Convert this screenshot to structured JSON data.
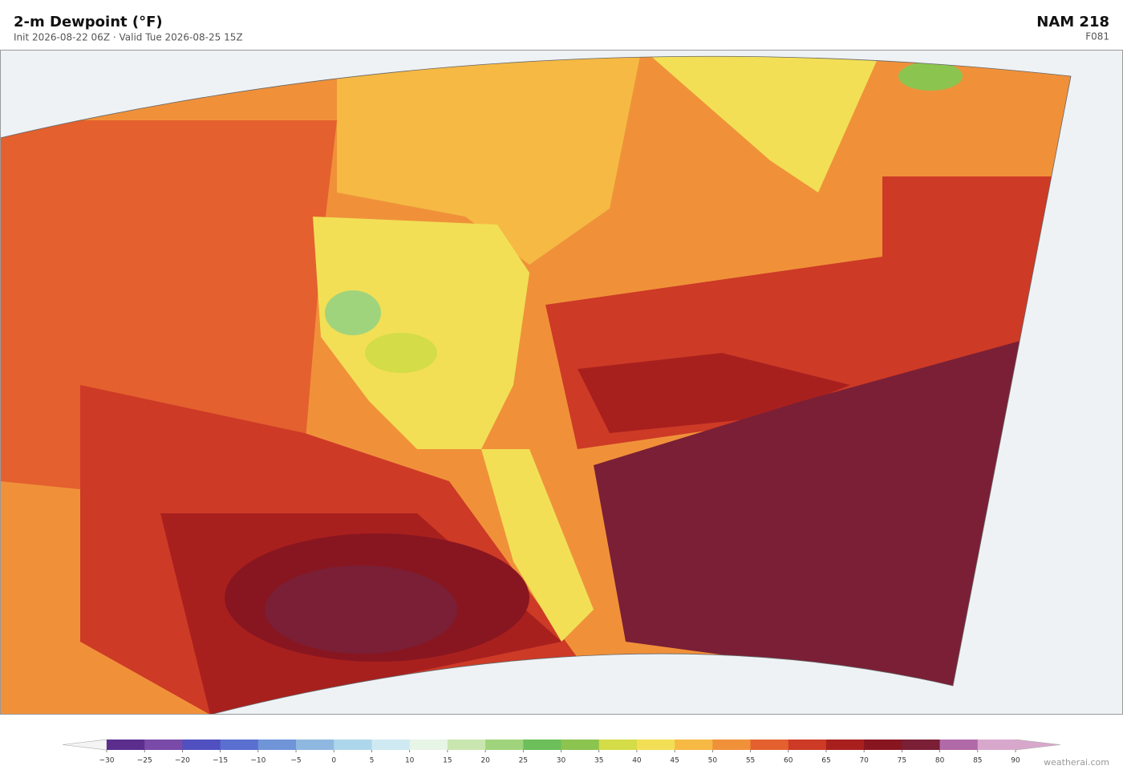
{
  "header": {
    "title": "2-m Dewpoint  (°F)",
    "subtitle": "Init 2026-08-22 06Z  ·  Valid Tue 2026-08-25 15Z",
    "model": "NAM  218",
    "forecast_hour": "F081"
  },
  "colorbar": {
    "ticks": [
      {
        "value": -30,
        "label": "−30"
      },
      {
        "value": -25,
        "label": "−25"
      },
      {
        "value": -20,
        "label": "−20"
      },
      {
        "value": -15,
        "label": "−15"
      },
      {
        "value": -10,
        "label": "−10"
      },
      {
        "value": -5,
        "label": "−5"
      },
      0,
      5,
      10,
      15,
      20,
      25,
      30,
      35,
      40,
      45,
      50,
      55,
      60,
      65,
      70,
      75,
      80,
      85,
      90
    ],
    "colors": [
      "#5b2e8e",
      "#7a4aa8",
      "#5050c0",
      "#5a6fd0",
      "#6f95d8",
      "#8fb8e0",
      "#aed6ea",
      "#cfe9f2",
      "#e6f5e6",
      "#c9e6b0",
      "#a0d47c",
      "#6cbf5a",
      "#8cc450",
      "#d4dc48",
      "#f2df55",
      "#f5b944",
      "#f0913a",
      "#e4602e",
      "#cd3a26",
      "#a8201e",
      "#881620",
      "#7a1f36",
      "#b06aa8",
      "#d8a8cc"
    ],
    "under_color": "#f4f4f4",
    "over_color": "#d8a8cc"
  },
  "footer": {
    "credit": "weatherai.com"
  }
}
